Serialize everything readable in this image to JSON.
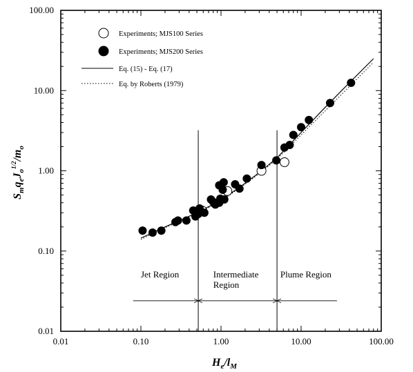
{
  "chart_data": {
    "type": "scatter",
    "xscale": "log",
    "yscale": "log",
    "xlim": [
      0.01,
      100
    ],
    "ylim": [
      0.01,
      100
    ],
    "x_tick_labels": [
      "0.01",
      "0.10",
      "1.00",
      "10.00",
      "100.00"
    ],
    "y_tick_labels": [
      "0.01",
      "0.10",
      "1.00",
      "10.00",
      "100.00"
    ],
    "xlabel": {
      "main1": "H",
      "sub1": "e",
      "main2": "/l",
      "sub2": "M"
    },
    "ylabel": {
      "main1": "S",
      "sub1": "m",
      "main2": "q",
      "sub2": "e",
      "main3": "J",
      "sub3": "o",
      "sup3": "1/2",
      "main4": "/m",
      "sub4": "o"
    },
    "grid": false,
    "legend_position": "top-left",
    "legend": [
      {
        "marker": "open-circle",
        "label": "Experiments; MJS100 Series"
      },
      {
        "marker": "filled-circle",
        "label": "Experiments; MJS200 Series"
      },
      {
        "marker": "solid-line",
        "label": "Eq. (15) - Eq. (17)"
      },
      {
        "marker": "dotted-line",
        "label": "Eq. by Roberts (1979)"
      }
    ],
    "series": [
      {
        "name": "Experiments; MJS100 Series",
        "marker": "open",
        "points": [
          [
            0.58,
            0.32
          ],
          [
            1.2,
            0.56
          ],
          [
            3.2,
            1.0
          ],
          [
            6.2,
            1.28
          ]
        ]
      },
      {
        "name": "Experiments; MJS200 Series",
        "marker": "filled",
        "points": [
          [
            0.105,
            0.18
          ],
          [
            0.14,
            0.17
          ],
          [
            0.18,
            0.18
          ],
          [
            0.27,
            0.23
          ],
          [
            0.29,
            0.24
          ],
          [
            0.37,
            0.24
          ],
          [
            0.45,
            0.32
          ],
          [
            0.48,
            0.27
          ],
          [
            0.52,
            0.29
          ],
          [
            0.54,
            0.34
          ],
          [
            0.62,
            0.3
          ],
          [
            0.75,
            0.44
          ],
          [
            0.8,
            0.41
          ],
          [
            0.85,
            0.38
          ],
          [
            0.95,
            0.4
          ],
          [
            0.98,
            0.45
          ],
          [
            0.95,
            0.66
          ],
          [
            1.05,
            0.58
          ],
          [
            1.08,
            0.72
          ],
          [
            1.1,
            0.44
          ],
          [
            1.5,
            0.68
          ],
          [
            1.7,
            0.6
          ],
          [
            2.1,
            0.8
          ],
          [
            3.2,
            1.18
          ],
          [
            4.9,
            1.35
          ],
          [
            6.2,
            1.95
          ],
          [
            7.2,
            2.1
          ],
          [
            8.0,
            2.8
          ],
          [
            10.0,
            3.5
          ],
          [
            12.5,
            4.3
          ],
          [
            23.0,
            7.0
          ],
          [
            42.0,
            12.5
          ]
        ]
      },
      {
        "name": "Eq. (15) - Eq. (17)",
        "style": "solid",
        "points": [
          [
            0.1,
            0.145
          ],
          [
            0.2,
            0.2
          ],
          [
            0.5,
            0.3
          ],
          [
            1.0,
            0.43
          ],
          [
            2.0,
            0.7
          ],
          [
            3.0,
            0.95
          ],
          [
            5.0,
            1.45
          ],
          [
            10.0,
            3.0
          ],
          [
            20.0,
            6.2
          ],
          [
            40.0,
            12.5
          ],
          [
            80.0,
            25.0
          ]
        ]
      },
      {
        "name": "Eq. by Roberts (1979)",
        "style": "dotted",
        "points": [
          [
            0.1,
            0.14
          ],
          [
            0.2,
            0.195
          ],
          [
            0.5,
            0.29
          ],
          [
            1.0,
            0.42
          ],
          [
            2.0,
            0.68
          ],
          [
            3.0,
            0.92
          ],
          [
            5.0,
            1.4
          ],
          [
            10.0,
            2.8
          ],
          [
            20.0,
            5.6
          ],
          [
            40.0,
            11.2
          ],
          [
            80.0,
            22.5
          ]
        ]
      }
    ],
    "region_boundaries": [
      0.52,
      5.0
    ],
    "region_arrow_span": [
      0.08,
      28.0
    ],
    "region_arrow_y": 0.024,
    "regions": [
      {
        "lines": [
          "Jet Region"
        ],
        "x": 0.1,
        "y": 0.047
      },
      {
        "lines": [
          "Intermediate",
          "Region"
        ],
        "x": 0.8,
        "y": 0.047
      },
      {
        "lines": [
          "Plume Region"
        ],
        "x": 5.5,
        "y": 0.047
      }
    ]
  }
}
